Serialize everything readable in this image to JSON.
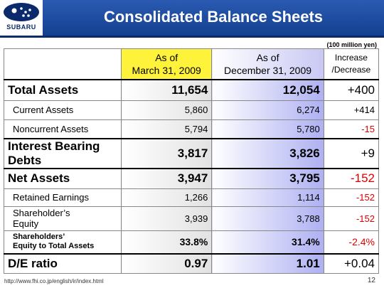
{
  "header": {
    "logo_text": "SUBARU",
    "title": "Consolidated Balance Sheets"
  },
  "unit_note": "(100 million yen)",
  "table": {
    "columns": [
      [
        "As of",
        "March 31, 2009"
      ],
      [
        "As of",
        "December 31, 2009"
      ],
      [
        "Increase",
        "/Decrease"
      ]
    ],
    "rows": [
      {
        "label": [
          "Total Assets"
        ],
        "values": [
          "11,654",
          "12,054",
          "+400"
        ]
      },
      {
        "label": [
          "Current Assets"
        ],
        "values": [
          "5,860",
          "6,274",
          "+414"
        ]
      },
      {
        "label": [
          "Noncurrent Assets"
        ],
        "values": [
          "5,794",
          "5,780",
          "-15"
        ]
      },
      {
        "label": [
          "Interest Bearing",
          "Debts"
        ],
        "values": [
          "3,817",
          "3,826",
          "+9"
        ]
      },
      {
        "label": [
          "Net Assets"
        ],
        "values": [
          "3,947",
          "3,795",
          "-152"
        ]
      },
      {
        "label": [
          "Retained Earnings"
        ],
        "values": [
          "1,266",
          "1,114",
          "-152"
        ]
      },
      {
        "label": [
          "Shareholder’s",
          "Equity"
        ],
        "values": [
          "3,939",
          "3,788",
          "-152"
        ]
      },
      {
        "label": [
          "Shareholders’",
          "Equity to Total Assets"
        ],
        "values": [
          "33.8%",
          "31.4%",
          "-2.4%"
        ]
      },
      {
        "label": [
          "D/E ratio"
        ],
        "values": [
          "0.97",
          "1.01",
          "+0.04"
        ]
      }
    ]
  },
  "footer": {
    "url": "http://www.fhi.co.jp/english/ir/index.html",
    "page": "12"
  }
}
